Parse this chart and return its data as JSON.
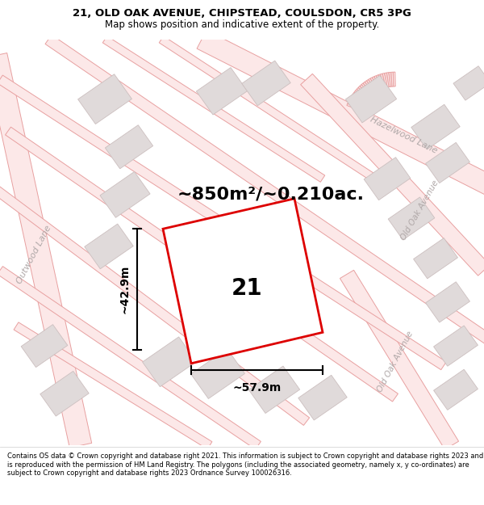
{
  "title_line1": "21, OLD OAK AVENUE, CHIPSTEAD, COULSDON, CR5 3PG",
  "title_line2": "Map shows position and indicative extent of the property.",
  "footer": "Contains OS data © Crown copyright and database right 2021. This information is subject to Crown copyright and database rights 2023 and is reproduced with the permission of HM Land Registry. The polygons (including the associated geometry, namely x, y co-ordinates) are subject to Crown copyright and database rights 2023 Ordnance Survey 100026316.",
  "area_label": "~850m²/~0.210ac.",
  "number_label": "21",
  "dim_width": "~57.9m",
  "dim_height": "~42.9m",
  "map_bg": "#f9f7f7",
  "road_fill": "#fce8e8",
  "road_edge": "#e8a0a0",
  "building_fill": "#e0dada",
  "building_edge": "#ccbfbf",
  "plot_fill": "#ffffff",
  "plot_edge": "#dd0000",
  "plot_edge_width": 2.0,
  "street_label_color": "#b0a8a8",
  "text_color": "#000000",
  "title_fontsize": 9.5,
  "subtitle_fontsize": 8.5,
  "area_fontsize": 16,
  "number_fontsize": 20,
  "dim_fontsize": 10,
  "street_fontsize": 8,
  "footer_fontsize": 6.0
}
